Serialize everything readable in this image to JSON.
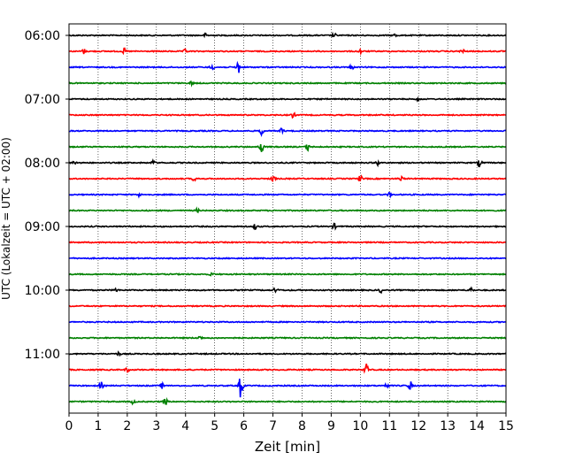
{
  "chart_data": {
    "type": "line",
    "xlabel": "Zeit  [min]",
    "ylabel": "UTC (Lokalzeit = UTC + 02:00)",
    "xlim": [
      0,
      15
    ],
    "x_ticks": [
      0,
      1,
      2,
      3,
      4,
      5,
      6,
      7,
      8,
      9,
      10,
      11,
      12,
      13,
      14,
      15
    ],
    "grid": "vertical dotted",
    "y_ticks": [
      "06:00",
      "07:00",
      "08:00",
      "09:00",
      "10:00",
      "11:00"
    ],
    "row_interval_min": 15,
    "first_row": "06:00",
    "row_colors": [
      "#000000",
      "#ff0000",
      "#0000ff",
      "#008000"
    ],
    "rows": [
      {
        "time": "06:00",
        "color": "#000000",
        "events": [
          {
            "x": 4.7,
            "amp": 0.25
          },
          {
            "x": 9.1,
            "amp": 0.25
          },
          {
            "x": 11.2,
            "amp": 0.2
          }
        ]
      },
      {
        "time": "06:15",
        "color": "#ff0000",
        "events": [
          {
            "x": 0.5,
            "amp": 0.3
          },
          {
            "x": 1.9,
            "amp": 0.3
          },
          {
            "x": 4.0,
            "amp": 0.25
          },
          {
            "x": 10.0,
            "amp": 0.25
          },
          {
            "x": 13.5,
            "amp": 0.3
          }
        ]
      },
      {
        "time": "06:30",
        "color": "#0000ff",
        "events": [
          {
            "x": 4.9,
            "amp": 0.4
          },
          {
            "x": 5.8,
            "amp": 0.9
          },
          {
            "x": 9.7,
            "amp": 0.25
          }
        ]
      },
      {
        "time": "06:45",
        "color": "#008000",
        "events": [
          {
            "x": 4.2,
            "amp": 0.2
          }
        ]
      },
      {
        "time": "07:00",
        "color": "#000000",
        "events": [
          {
            "x": 12.0,
            "amp": 0.2
          }
        ]
      },
      {
        "time": "07:15",
        "color": "#ff0000",
        "events": [
          {
            "x": 7.7,
            "amp": 0.3
          }
        ]
      },
      {
        "time": "07:30",
        "color": "#0000ff",
        "events": [
          {
            "x": 6.6,
            "amp": 0.45
          },
          {
            "x": 7.3,
            "amp": 0.3
          }
        ]
      },
      {
        "time": "07:45",
        "color": "#008000",
        "events": [
          {
            "x": 6.6,
            "amp": 0.9
          },
          {
            "x": 8.2,
            "amp": 0.4
          }
        ]
      },
      {
        "time": "08:00",
        "color": "#000000",
        "events": [
          {
            "x": 0.2,
            "amp": 0.25
          },
          {
            "x": 2.9,
            "amp": 0.25
          },
          {
            "x": 10.6,
            "amp": 0.25
          },
          {
            "x": 14.1,
            "amp": 0.5
          }
        ]
      },
      {
        "time": "08:15",
        "color": "#ff0000",
        "events": [
          {
            "x": 4.3,
            "amp": 0.25
          },
          {
            "x": 7.0,
            "amp": 0.5
          },
          {
            "x": 10.0,
            "amp": 0.35
          },
          {
            "x": 11.4,
            "amp": 0.3
          }
        ]
      },
      {
        "time": "08:30",
        "color": "#0000ff",
        "events": [
          {
            "x": 2.4,
            "amp": 0.2
          },
          {
            "x": 11.0,
            "amp": 0.2
          }
        ]
      },
      {
        "time": "08:45",
        "color": "#008000",
        "events": [
          {
            "x": 4.4,
            "amp": 0.2
          }
        ]
      },
      {
        "time": "09:00",
        "color": "#000000",
        "events": [
          {
            "x": 6.4,
            "amp": 0.35
          },
          {
            "x": 9.1,
            "amp": 0.3
          }
        ]
      },
      {
        "time": "09:15",
        "color": "#ff0000",
        "events": []
      },
      {
        "time": "09:30",
        "color": "#0000ff",
        "events": []
      },
      {
        "time": "09:45",
        "color": "#008000",
        "events": [
          {
            "x": 4.9,
            "amp": 0.2
          }
        ]
      },
      {
        "time": "10:00",
        "color": "#000000",
        "events": [
          {
            "x": 1.6,
            "amp": 0.25
          },
          {
            "x": 7.1,
            "amp": 0.4
          },
          {
            "x": 10.7,
            "amp": 0.25
          },
          {
            "x": 13.8,
            "amp": 0.3
          }
        ]
      },
      {
        "time": "10:15",
        "color": "#ff0000",
        "events": []
      },
      {
        "time": "10:30",
        "color": "#0000ff",
        "events": []
      },
      {
        "time": "10:45",
        "color": "#008000",
        "events": [
          {
            "x": 4.5,
            "amp": 0.25
          }
        ]
      },
      {
        "time": "11:00",
        "color": "#000000",
        "events": [
          {
            "x": 1.7,
            "amp": 0.2
          }
        ]
      },
      {
        "time": "11:15",
        "color": "#ff0000",
        "events": [
          {
            "x": 2.0,
            "amp": 0.25
          },
          {
            "x": 10.2,
            "amp": 0.9
          }
        ]
      },
      {
        "time": "11:30",
        "color": "#0000ff",
        "events": [
          {
            "x": 1.1,
            "amp": 0.4
          },
          {
            "x": 3.2,
            "amp": 0.3
          },
          {
            "x": 5.9,
            "amp": 1.5
          },
          {
            "x": 10.9,
            "amp": 0.4
          },
          {
            "x": 11.7,
            "amp": 0.6
          }
        ]
      },
      {
        "time": "11:45",
        "color": "#008000",
        "events": [
          {
            "x": 2.2,
            "amp": 0.25
          },
          {
            "x": 3.3,
            "amp": 0.5
          }
        ]
      }
    ]
  }
}
